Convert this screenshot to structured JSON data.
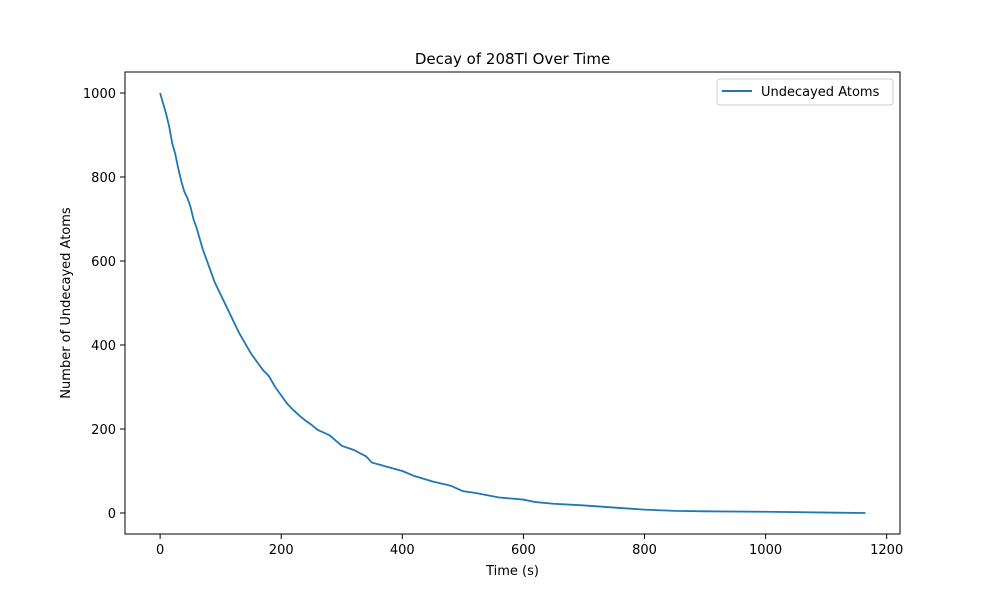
{
  "chart_data": {
    "type": "line",
    "title": "Decay of 208Tl Over Time",
    "xlabel": "Time (s)",
    "ylabel": "Number of Undecayed Atoms",
    "xlim": [
      -58,
      1222
    ],
    "ylim": [
      -50,
      1050
    ],
    "xticks": [
      0,
      200,
      400,
      600,
      800,
      1000,
      1200
    ],
    "yticks": [
      0,
      200,
      400,
      600,
      800,
      1000
    ],
    "grid": false,
    "legend_position": "top-right",
    "colors": {
      "series": "#1f77b4"
    },
    "series": [
      {
        "name": "Undecayed Atoms",
        "x": [
          0,
          5,
          10,
          15,
          20,
          25,
          30,
          35,
          40,
          45,
          50,
          55,
          60,
          65,
          70,
          75,
          80,
          85,
          90,
          95,
          100,
          110,
          120,
          130,
          140,
          150,
          160,
          165,
          170,
          175,
          180,
          190,
          200,
          210,
          220,
          230,
          240,
          250,
          260,
          280,
          300,
          320,
          340,
          350,
          355,
          370,
          400,
          420,
          450,
          480,
          500,
          520,
          560,
          600,
          620,
          650,
          700,
          750,
          800,
          850,
          900,
          1000,
          1050,
          1100,
          1165
        ],
        "y": [
          1000,
          975,
          950,
          920,
          880,
          855,
          820,
          790,
          765,
          750,
          730,
          700,
          680,
          655,
          630,
          610,
          590,
          570,
          550,
          535,
          520,
          490,
          460,
          430,
          405,
          380,
          360,
          350,
          340,
          333,
          325,
          300,
          280,
          260,
          245,
          232,
          220,
          210,
          198,
          185,
          160,
          150,
          135,
          120,
          118,
          112,
          100,
          88,
          75,
          65,
          52,
          48,
          37,
          32,
          26,
          22,
          18,
          13,
          8,
          5,
          4,
          3,
          2,
          1,
          0
        ]
      }
    ]
  }
}
